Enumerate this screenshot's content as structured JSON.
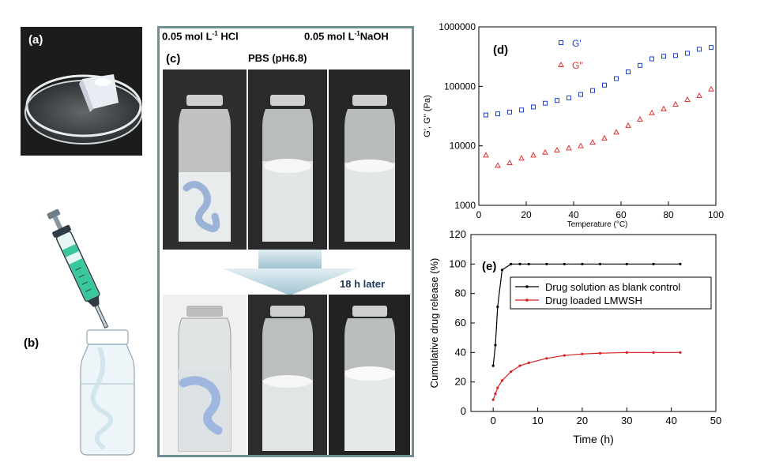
{
  "panel_a": {
    "label": "(a)"
  },
  "panel_b": {
    "label": "(b)"
  },
  "panel_c": {
    "label": "(c)",
    "hcl": "0.05 mol L",
    "hcl_sup": "-1",
    "hcl_suffix": " HCl",
    "naoh": "0.05 mol L",
    "naoh_sup": "-1",
    "naoh_suffix": "NaOH",
    "pbs": "PBS (pH6.8)",
    "later": "18 h later"
  },
  "chart_data": [
    {
      "type": "scatter",
      "label": "(d)",
      "xlabel": "Temperature (°C)",
      "ylabel": "G', G'' (Pa)",
      "xlim": [
        0,
        100
      ],
      "ylim": [
        1000,
        1000000
      ],
      "yscale": "log",
      "xticks": [
        0,
        20,
        40,
        60,
        80,
        100
      ],
      "yticks": [
        1000,
        10000,
        100000,
        1000000
      ],
      "ytick_labels": [
        "1000",
        "10000",
        "100000",
        "1000000"
      ],
      "legend": "top-center",
      "series": [
        {
          "name": "G'",
          "marker": "square",
          "color": "#1f3fd4",
          "x": [
            3,
            8,
            13,
            18,
            23,
            28,
            33,
            38,
            43,
            48,
            53,
            58,
            63,
            68,
            73,
            78,
            83,
            88,
            93,
            98
          ],
          "y": [
            33000,
            34500,
            37000,
            40000,
            45000,
            52000,
            58000,
            64000,
            73000,
            85000,
            105000,
            135000,
            175000,
            225000,
            290000,
            320000,
            330000,
            360000,
            420000,
            450000
          ]
        },
        {
          "name": "G''",
          "marker": "triangle",
          "color": "#e03030",
          "x": [
            3,
            8,
            13,
            18,
            23,
            28,
            33,
            38,
            43,
            48,
            53,
            58,
            63,
            68,
            73,
            78,
            83,
            88,
            93,
            98
          ],
          "y": [
            7000,
            4700,
            5200,
            6200,
            7000,
            7800,
            8500,
            9200,
            10000,
            11500,
            13500,
            17000,
            22000,
            28000,
            36000,
            42000,
            50000,
            60000,
            70000,
            90000
          ]
        }
      ]
    },
    {
      "type": "line",
      "label": "(e)",
      "xlabel": "Time (h)",
      "ylabel": "Cumulative drug release (%)",
      "xlim": [
        -5,
        50
      ],
      "ylim": [
        0,
        120
      ],
      "xticks": [
        0,
        10,
        20,
        30,
        40,
        50
      ],
      "yticks": [
        0,
        20,
        40,
        60,
        80,
        100,
        120
      ],
      "legend": "top-right",
      "series": [
        {
          "name": "Drug solution as blank control",
          "color": "#000000",
          "x": [
            0,
            0.5,
            1,
            2,
            4,
            6,
            8,
            12,
            16,
            20,
            24,
            30,
            36,
            42
          ],
          "y": [
            31,
            45,
            71,
            96,
            100,
            100,
            100,
            100,
            100,
            100,
            100,
            100,
            100,
            100
          ]
        },
        {
          "name": "Drug loaded LMWSH",
          "color": "#d62020",
          "x": [
            0,
            0.5,
            1,
            2,
            4,
            6,
            8,
            12,
            16,
            20,
            24,
            30,
            36,
            42
          ],
          "y": [
            8,
            12,
            16,
            21,
            27,
            31,
            33,
            36,
            38,
            39,
            39.5,
            40,
            40,
            40
          ]
        }
      ]
    }
  ]
}
